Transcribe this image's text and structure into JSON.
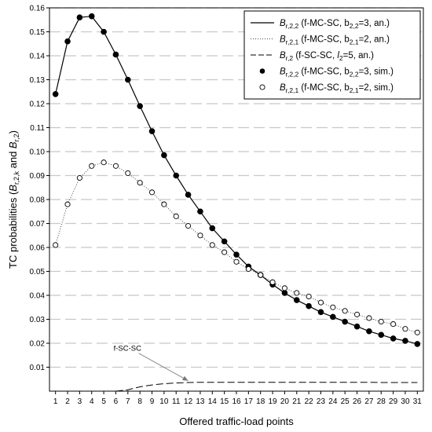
{
  "chart_data": {
    "type": "line",
    "xlabel": "Offered traffic-load points",
    "ylabel": "TC probabilities (B_{r,2,k} and B_{r,2})",
    "ylabel_parts": {
      "prefix": "TC probabilities (",
      "b1": "B",
      "b1_sub": "r,2,k",
      "mid": " and ",
      "b2": "B",
      "b2_sub": "r,2",
      "suffix": ")"
    },
    "xlim": [
      0.5,
      31.5
    ],
    "ylim": [
      0,
      0.16
    ],
    "x": [
      1,
      2,
      3,
      4,
      5,
      6,
      7,
      8,
      9,
      10,
      11,
      12,
      13,
      14,
      15,
      16,
      17,
      18,
      19,
      20,
      21,
      22,
      23,
      24,
      25,
      26,
      27,
      28,
      29,
      30,
      31
    ],
    "yticks": [
      "0.01",
      "0.02",
      "0.03",
      "0.04",
      "0.05",
      "0.06",
      "0.07",
      "0.08",
      "0.09",
      "0.10",
      "0.11",
      "0.12",
      "0.13",
      "0.14",
      "0.15",
      "0.16"
    ],
    "grid": true,
    "legend_position": "top-right",
    "series": [
      {
        "key": "b22_an",
        "style": "solid",
        "label_sym": "B",
        "label_sub": "r,2,2",
        "label_text": " (f-MC-SC, b",
        "label_sub2": "2,2",
        "label_tail": "=3, an.)",
        "values": [
          0.124,
          0.146,
          0.156,
          0.1565,
          0.15,
          0.1405,
          0.13,
          0.119,
          0.1085,
          0.0985,
          0.09,
          0.082,
          0.075,
          0.068,
          0.0625,
          0.057,
          0.052,
          0.0485,
          0.0445,
          0.041,
          0.038,
          0.0355,
          0.033,
          0.031,
          0.029,
          0.027,
          0.025,
          0.0235,
          0.022,
          0.021,
          0.0197
        ]
      },
      {
        "key": "b21_an",
        "style": "dotted",
        "label_sym": "B",
        "label_sub": "r,2,1",
        "label_text": " (f-MC-SC, b",
        "label_sub2": "2,1",
        "label_tail": "=2, an.)",
        "values": [
          0.061,
          0.078,
          0.089,
          0.094,
          0.0955,
          0.094,
          0.091,
          0.087,
          0.083,
          0.078,
          0.073,
          0.069,
          0.065,
          0.061,
          0.058,
          0.054,
          0.051,
          0.0485,
          0.0455,
          0.043,
          0.041,
          0.0395,
          0.037,
          0.035,
          0.0335,
          0.032,
          0.0305,
          0.029,
          0.028,
          0.026,
          0.0245
        ]
      },
      {
        "key": "b2_an",
        "style": "dashed",
        "label_sym": "B",
        "label_sub": "r,2",
        "label_text": " (f-SC-SC, ",
        "label_italic": "l",
        "label_sub2": "2",
        "label_tail": "=5, an.)",
        "values": [
          0,
          0,
          0,
          0,
          0,
          0,
          0.0006,
          0.0018,
          0.0026,
          0.0031,
          0.0034,
          0.0036,
          0.0037,
          0.0037,
          0.0037,
          0.0037,
          0.0037,
          0.0037,
          0.0037,
          0.0037,
          0.0037,
          0.0037,
          0.0037,
          0.0037,
          0.0037,
          0.0037,
          0.0037,
          0.0036,
          0.0036,
          0.0036,
          0.0036
        ]
      },
      {
        "key": "b22_sim",
        "style": "filled-markers",
        "label_sym": "B",
        "label_sub": "r,2,2",
        "label_text": " (f-MC-SC, b",
        "label_sub2": "2,2",
        "label_tail": "=3, sim.)",
        "values": [
          0.124,
          0.146,
          0.156,
          0.1565,
          0.15,
          0.1405,
          0.13,
          0.119,
          0.1085,
          0.0985,
          0.09,
          0.082,
          0.075,
          0.068,
          0.0625,
          0.057,
          0.052,
          0.0485,
          0.0445,
          0.041,
          0.038,
          0.0355,
          0.033,
          0.031,
          0.029,
          0.027,
          0.025,
          0.0235,
          0.022,
          0.021,
          0.0197
        ]
      },
      {
        "key": "b21_sim",
        "style": "open-markers",
        "label_sym": "B",
        "label_sub": "r,2,1",
        "label_text": " (f-MC-SC, b",
        "label_sub2": "2,1",
        "label_tail": "=2, sim.)",
        "values": [
          0.061,
          0.078,
          0.089,
          0.094,
          0.0955,
          0.094,
          0.091,
          0.087,
          0.083,
          0.078,
          0.073,
          0.069,
          0.065,
          0.061,
          0.058,
          0.054,
          0.051,
          0.0485,
          0.0455,
          0.043,
          0.041,
          0.0395,
          0.037,
          0.035,
          0.0335,
          0.032,
          0.0305,
          0.029,
          0.028,
          0.026,
          0.0245
        ]
      }
    ],
    "annotation": {
      "text": "f-SC-SC",
      "x": 12,
      "y": 0.0037
    }
  }
}
